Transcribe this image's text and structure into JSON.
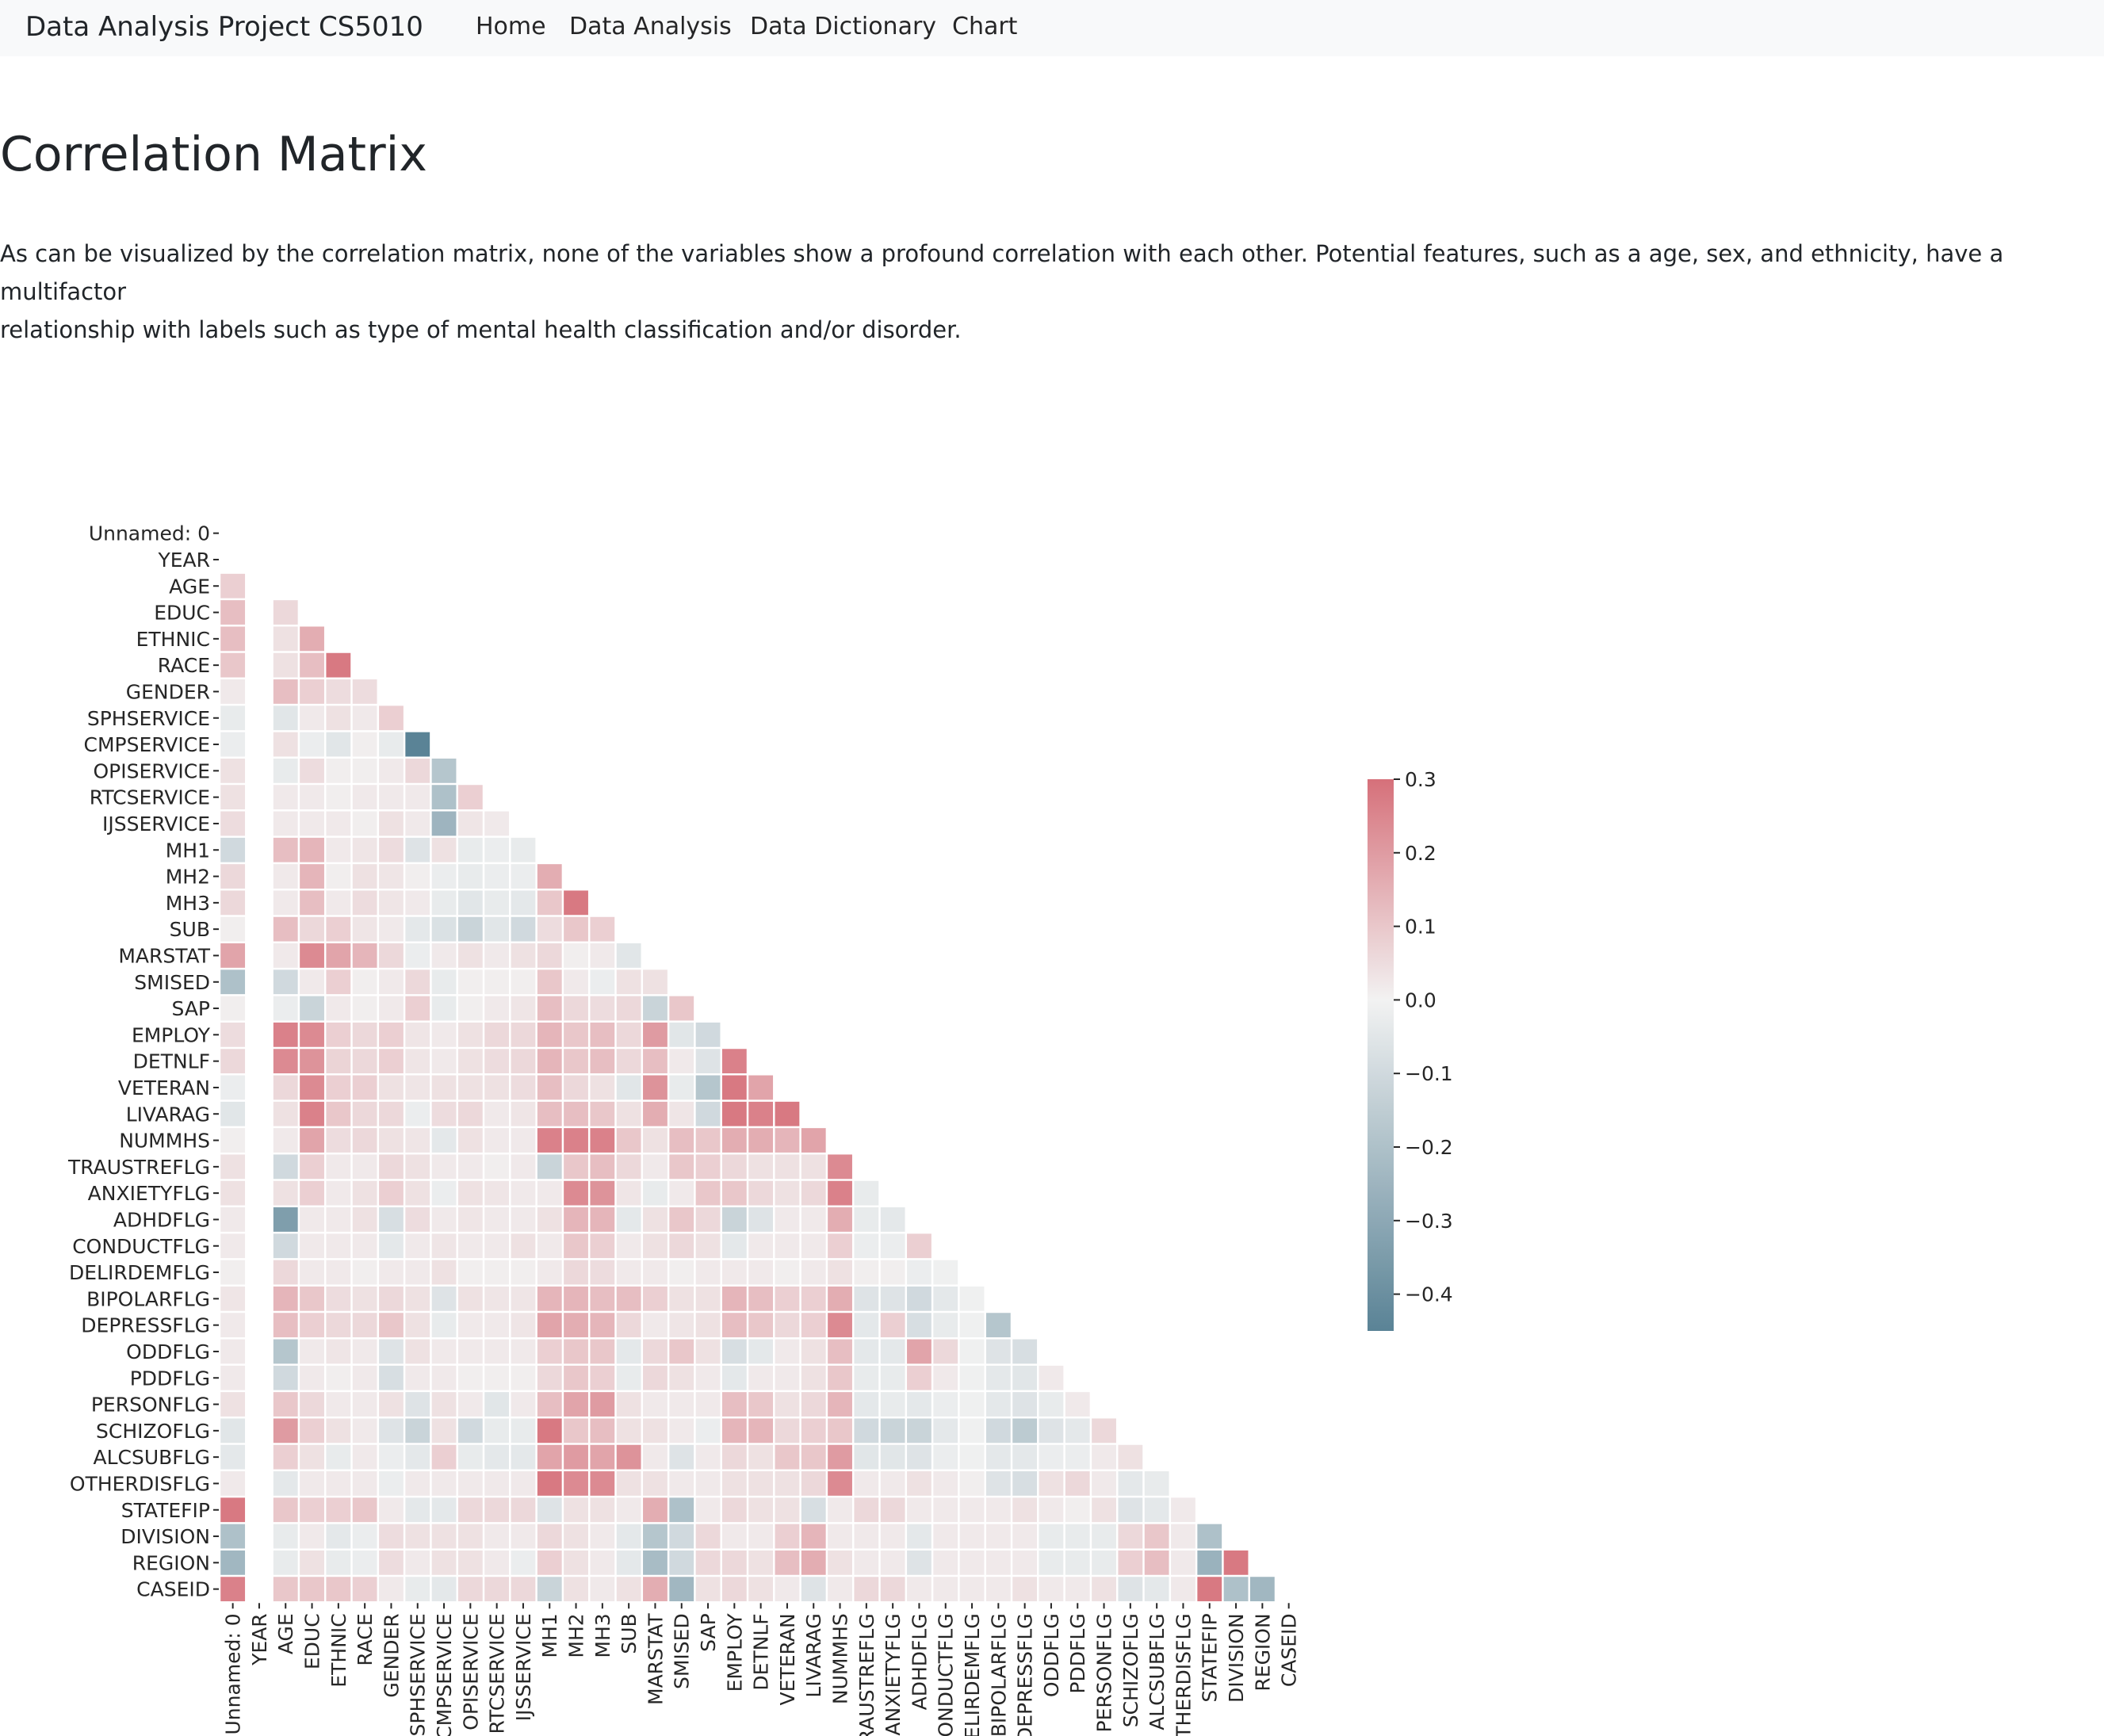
{
  "navbar": {
    "brand": "Data Analysis Project CS5010",
    "links": [
      "Home",
      "Data Analysis",
      "Data Dictionary",
      "Chart"
    ]
  },
  "page": {
    "title": "Correlation Matrix",
    "description_line1": "As can be visualized by the correlation matrix, none of the variables show a profound correlation with each other. Potential features, such as a age, sex, and ethnicity, have a multifactor",
    "description_line2": "relationship with labels such as type of mental health classification and/or disorder."
  },
  "colors": {
    "low": "#5a8396",
    "mid": "#f2f2f2",
    "high": "#d6707a",
    "navbar_bg": "#f8f9fa"
  },
  "chart_data": {
    "type": "heatmap",
    "variant": "lower-triangle correlation matrix",
    "labels": [
      "Unnamed: 0",
      "YEAR",
      "AGE",
      "EDUC",
      "ETHNIC",
      "RACE",
      "GENDER",
      "SPHSERVICE",
      "CMPSERVICE",
      "OPISERVICE",
      "RTCSERVICE",
      "IJSSERVICE",
      "MH1",
      "MH2",
      "MH3",
      "SUB",
      "MARSTAT",
      "SMISED",
      "SAP",
      "EMPLOY",
      "DETNLF",
      "VETERAN",
      "LIVARAG",
      "NUMMHS",
      "TRAUSTREFLG",
      "ANXIETYFLG",
      "ADHDFLG",
      "CONDUCTFLG",
      "DELIRDEMFLG",
      "BIPOLARFLG",
      "DEPRESSFLG",
      "ODDFLG",
      "PDDFLG",
      "PERSONFLG",
      "SCHIZOFLG",
      "ALCSUBFLG",
      "OTHERDISFLG",
      "STATEFIP",
      "DIVISION",
      "REGION",
      "CASEID"
    ],
    "colorbar": {
      "range": [
        -0.45,
        0.3
      ],
      "ticks": [
        0.3,
        0.2,
        0.1,
        0.0,
        -0.1,
        -0.2,
        -0.3,
        -0.4
      ],
      "tick_labels": [
        "0.3",
        "0.2",
        "0.1",
        "0.0",
        "−0.1",
        "−0.2",
        "−0.3",
        "−0.4"
      ]
    },
    "values": [
      [],
      [
        null
      ],
      [
        0.08,
        null
      ],
      [
        0.12,
        null,
        0.06
      ],
      [
        0.12,
        null,
        0.04,
        0.16
      ],
      [
        0.1,
        null,
        0.04,
        0.12,
        0.28
      ],
      [
        0.02,
        null,
        0.12,
        0.08,
        0.05,
        0.05
      ],
      [
        -0.03,
        null,
        -0.05,
        0.02,
        0.04,
        0.02,
        0.08
      ],
      [
        -0.02,
        null,
        0.04,
        -0.02,
        -0.05,
        0.01,
        -0.03,
        -0.45
      ],
      [
        0.04,
        null,
        -0.03,
        0.05,
        0.01,
        0.01,
        0.02,
        0.06,
        -0.18
      ],
      [
        0.04,
        null,
        0.02,
        0.02,
        0.01,
        0.02,
        0.02,
        0.02,
        -0.2,
        0.08
      ],
      [
        0.05,
        null,
        0.02,
        0.02,
        0.02,
        0.01,
        0.04,
        0.02,
        -0.25,
        0.03,
        0.02
      ],
      [
        -0.1,
        null,
        0.12,
        0.14,
        0.02,
        0.03,
        0.05,
        -0.06,
        0.04,
        -0.03,
        -0.02,
        -0.03
      ],
      [
        0.06,
        null,
        0.02,
        0.14,
        0.01,
        0.04,
        0.03,
        0.01,
        -0.02,
        -0.03,
        -0.02,
        -0.02,
        0.16
      ],
      [
        0.06,
        null,
        0.02,
        0.12,
        0.02,
        0.05,
        0.03,
        0.02,
        -0.03,
        -0.05,
        -0.03,
        -0.04,
        0.1,
        0.28
      ],
      [
        0.01,
        null,
        0.12,
        0.06,
        0.08,
        0.03,
        0.02,
        -0.04,
        -0.07,
        -0.12,
        -0.05,
        -0.1,
        0.05,
        0.1,
        0.08
      ],
      [
        0.18,
        null,
        0.02,
        0.24,
        0.18,
        0.14,
        0.06,
        -0.02,
        0.02,
        0.04,
        0.02,
        0.04,
        0.06,
        0.01,
        0.02,
        -0.05
      ],
      [
        -0.2,
        null,
        -0.1,
        0.02,
        0.08,
        0.01,
        0.02,
        0.06,
        -0.03,
        0.01,
        0.01,
        0.01,
        0.1,
        0.02,
        -0.02,
        0.04,
        0.04
      ],
      [
        0.01,
        null,
        -0.02,
        -0.12,
        0.02,
        0.01,
        0.02,
        0.08,
        -0.03,
        0.01,
        0.02,
        0.03,
        0.12,
        0.06,
        0.05,
        0.06,
        -0.12,
        0.1
      ],
      [
        0.05,
        null,
        0.26,
        0.24,
        0.08,
        0.06,
        0.08,
        0.03,
        0.02,
        0.04,
        0.06,
        0.06,
        0.14,
        0.1,
        0.12,
        0.06,
        0.2,
        -0.05,
        -0.1
      ],
      [
        0.06,
        null,
        0.24,
        0.22,
        0.07,
        0.06,
        0.08,
        0.03,
        0.02,
        0.04,
        0.05,
        0.06,
        0.14,
        0.1,
        0.12,
        0.06,
        0.12,
        0.02,
        -0.06,
        0.26
      ],
      [
        -0.02,
        null,
        0.06,
        0.24,
        0.08,
        0.08,
        0.04,
        0.03,
        0.04,
        0.04,
        0.04,
        0.05,
        0.12,
        0.06,
        0.04,
        -0.05,
        0.22,
        -0.03,
        -0.18,
        0.28,
        0.18
      ],
      [
        -0.05,
        null,
        0.04,
        0.26,
        0.1,
        0.06,
        0.06,
        -0.02,
        0.05,
        0.06,
        0.02,
        0.03,
        0.12,
        0.12,
        0.1,
        0.04,
        0.16,
        0.03,
        -0.1,
        0.28,
        0.26,
        0.28
      ],
      [
        0.01,
        null,
        0.02,
        0.18,
        0.05,
        0.06,
        0.04,
        0.03,
        -0.04,
        0.04,
        0.02,
        0.02,
        0.26,
        0.26,
        0.26,
        0.1,
        0.04,
        0.12,
        0.1,
        0.16,
        0.16,
        0.14,
        0.18
      ],
      [
        0.04,
        null,
        -0.1,
        0.08,
        0.02,
        0.02,
        0.06,
        0.04,
        0.02,
        0.02,
        0.01,
        0.02,
        -0.12,
        0.1,
        0.12,
        0.06,
        0.02,
        0.1,
        0.08,
        0.06,
        0.04,
        0.04,
        0.04,
        0.24
      ],
      [
        0.04,
        null,
        0.04,
        0.08,
        0.02,
        0.04,
        0.08,
        0.04,
        -0.02,
        0.04,
        0.03,
        0.02,
        0.02,
        0.24,
        0.22,
        0.03,
        -0.03,
        0.02,
        0.1,
        0.1,
        0.06,
        0.04,
        0.06,
        0.26,
        -0.03
      ],
      [
        0.02,
        null,
        -0.34,
        0.02,
        0.02,
        0.04,
        -0.08,
        0.05,
        0.02,
        0.03,
        0.02,
        0.02,
        0.04,
        0.14,
        0.14,
        -0.04,
        0.04,
        0.1,
        0.06,
        -0.12,
        -0.06,
        0.02,
        0.02,
        0.16,
        -0.03,
        -0.04
      ],
      [
        0.02,
        null,
        -0.1,
        0.02,
        0.02,
        0.02,
        -0.04,
        0.02,
        0.03,
        0.02,
        0.02,
        0.04,
        0.02,
        0.1,
        0.08,
        0.02,
        0.04,
        0.06,
        0.04,
        -0.04,
        0.02,
        0.02,
        0.02,
        0.08,
        -0.02,
        -0.02,
        0.08
      ],
      [
        0.01,
        null,
        0.06,
        0.02,
        0.02,
        0.01,
        0.02,
        0.02,
        0.04,
        0.01,
        0.01,
        0.01,
        0.02,
        0.06,
        0.05,
        0.02,
        0.02,
        0.01,
        0.02,
        0.02,
        0.02,
        0.01,
        0.02,
        0.04,
        0.01,
        0.01,
        -0.02,
        -0.01
      ],
      [
        0.03,
        null,
        0.14,
        0.1,
        0.05,
        0.04,
        0.06,
        0.04,
        -0.06,
        0.04,
        0.03,
        0.03,
        0.14,
        0.14,
        0.12,
        0.12,
        0.08,
        0.04,
        0.04,
        0.14,
        0.12,
        0.08,
        0.08,
        0.16,
        -0.06,
        -0.06,
        -0.1,
        -0.04,
        -0.01
      ],
      [
        0.02,
        null,
        0.12,
        0.08,
        0.06,
        0.06,
        0.1,
        0.04,
        -0.03,
        0.02,
        0.02,
        0.03,
        0.18,
        0.16,
        0.14,
        0.06,
        0.02,
        0.03,
        0.04,
        0.12,
        0.1,
        0.06,
        0.08,
        0.24,
        -0.04,
        0.08,
        -0.08,
        -0.03,
        -0.01,
        -0.18
      ],
      [
        0.02,
        null,
        -0.18,
        0.02,
        0.03,
        0.02,
        -0.06,
        0.04,
        0.02,
        0.02,
        0.02,
        0.02,
        0.08,
        0.1,
        0.1,
        -0.04,
        0.06,
        0.1,
        0.04,
        -0.08,
        -0.04,
        0.02,
        0.04,
        0.12,
        -0.04,
        -0.04,
        0.18,
        0.06,
        -0.01,
        -0.06,
        -0.08
      ],
      [
        0.02,
        null,
        -0.1,
        0.02,
        0.01,
        0.02,
        -0.08,
        0.02,
        0.02,
        0.01,
        0.01,
        0.01,
        0.06,
        0.1,
        0.08,
        -0.03,
        0.06,
        0.04,
        0.02,
        -0.04,
        0.02,
        0.02,
        0.04,
        0.1,
        -0.03,
        -0.03,
        0.08,
        0.02,
        -0.01,
        -0.04,
        -0.05,
        0.02
      ],
      [
        0.04,
        null,
        0.1,
        0.06,
        0.02,
        0.02,
        0.04,
        -0.06,
        0.04,
        0.02,
        -0.05,
        0.02,
        0.12,
        0.18,
        0.2,
        0.04,
        0.02,
        0.02,
        0.02,
        0.12,
        0.1,
        0.04,
        0.06,
        0.14,
        -0.04,
        -0.03,
        -0.04,
        -0.02,
        -0.01,
        -0.04,
        -0.06,
        -0.03,
        0.02
      ],
      [
        -0.05,
        null,
        0.2,
        0.08,
        0.04,
        0.02,
        -0.06,
        -0.12,
        0.04,
        -0.1,
        -0.03,
        -0.03,
        0.28,
        0.1,
        0.12,
        0.04,
        0.04,
        0.02,
        -0.02,
        0.14,
        0.14,
        0.06,
        0.08,
        0.1,
        -0.1,
        -0.12,
        -0.12,
        -0.04,
        -0.01,
        -0.1,
        -0.16,
        -0.06,
        -0.04,
        0.06
      ],
      [
        -0.04,
        null,
        0.08,
        0.04,
        -0.03,
        0.02,
        -0.02,
        -0.04,
        0.08,
        -0.03,
        -0.04,
        -0.04,
        0.18,
        0.2,
        0.18,
        0.22,
        0.02,
        -0.06,
        0.02,
        0.06,
        0.04,
        0.1,
        0.1,
        0.2,
        -0.05,
        -0.05,
        -0.06,
        -0.02,
        -0.01,
        -0.04,
        -0.04,
        -0.02,
        -0.02,
        0.02,
        0.04
      ],
      [
        0.02,
        null,
        -0.04,
        0.02,
        0.02,
        0.02,
        -0.02,
        0.02,
        0.02,
        0.02,
        0.02,
        0.02,
        0.28,
        0.24,
        0.24,
        0.04,
        0.04,
        0.02,
        0.02,
        0.04,
        0.04,
        0.04,
        0.06,
        0.24,
        0.02,
        0.02,
        0.04,
        0.02,
        0.01,
        -0.06,
        -0.08,
        0.04,
        0.06,
        0.02,
        -0.04,
        -0.03
      ],
      [
        0.28,
        null,
        0.1,
        0.08,
        0.08,
        0.1,
        0.02,
        -0.04,
        -0.04,
        0.06,
        0.06,
        0.06,
        -0.06,
        0.04,
        0.04,
        0.02,
        0.16,
        -0.2,
        0.02,
        0.06,
        0.04,
        0.04,
        -0.08,
        0.02,
        0.06,
        0.06,
        0.02,
        0.02,
        0.02,
        0.02,
        0.04,
        0.02,
        0.01,
        0.04,
        -0.06,
        -0.04,
        0.02
      ],
      [
        -0.2,
        null,
        -0.03,
        0.02,
        -0.04,
        -0.02,
        0.05,
        0.04,
        0.04,
        0.04,
        0.02,
        0.02,
        0.06,
        0.04,
        0.02,
        -0.04,
        -0.18,
        -0.1,
        0.06,
        0.02,
        0.02,
        0.08,
        0.14,
        0.02,
        0.02,
        0.02,
        -0.04,
        0.02,
        0.02,
        0.02,
        0.02,
        -0.03,
        -0.03,
        -0.03,
        0.06,
        0.1,
        0.02,
        -0.2
      ],
      [
        -0.24,
        null,
        -0.03,
        0.04,
        -0.03,
        -0.02,
        0.05,
        0.02,
        0.04,
        0.04,
        0.02,
        -0.02,
        0.08,
        0.04,
        0.02,
        -0.04,
        -0.22,
        -0.1,
        0.06,
        0.06,
        0.04,
        0.12,
        0.16,
        0.04,
        0.02,
        0.02,
        -0.06,
        0.02,
        0.02,
        0.02,
        0.02,
        -0.03,
        -0.03,
        -0.03,
        0.08,
        0.12,
        0.02,
        -0.26,
        0.28
      ],
      [
        0.26,
        null,
        0.1,
        0.1,
        0.1,
        0.08,
        0.02,
        -0.03,
        -0.04,
        0.06,
        0.06,
        0.06,
        -0.12,
        0.04,
        0.02,
        0.04,
        0.16,
        -0.24,
        0.04,
        0.06,
        0.04,
        0.02,
        -0.06,
        0.02,
        0.06,
        0.06,
        0.02,
        0.02,
        0.02,
        0.02,
        0.04,
        0.02,
        0.02,
        0.04,
        -0.06,
        -0.04,
        0.02,
        0.28,
        -0.2,
        -0.24
      ]
    ]
  }
}
